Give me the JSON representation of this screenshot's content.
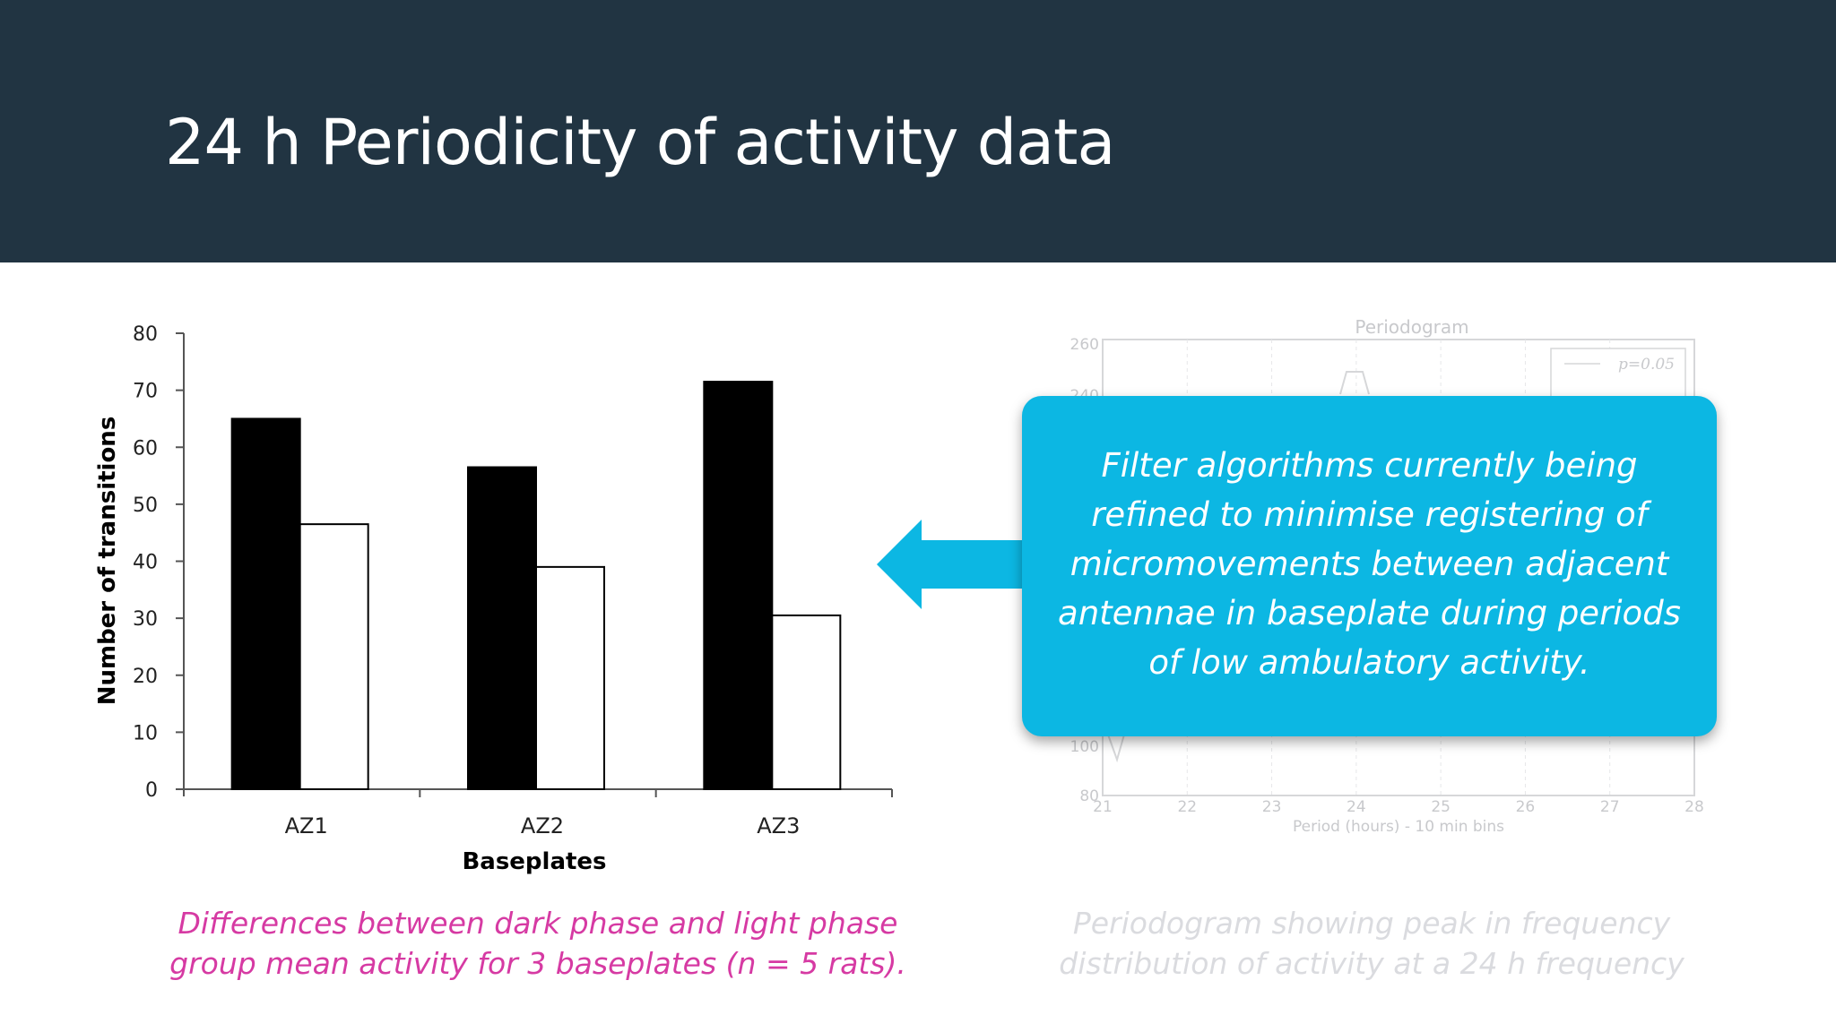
{
  "slide": {
    "title": "24 h Periodicity of activity data",
    "caption_left": "Differences between dark phase and light phase group mean activity for 3 baseplates (n = 5 rats).",
    "caption_right": "Periodogram showing peak in frequency distribution of activity at a 24 h frequency",
    "callout": "Filter algorithms currently being refined to minimise registering of micromovements between adjacent antennae in baseplate during periods of low ambulatory activity.",
    "colors": {
      "header": "#213442",
      "callout": "#0cb7e3",
      "caption_left": "#d63aa3",
      "caption_right_faded": "#dadbdf"
    }
  },
  "chart_data": [
    {
      "type": "bar",
      "categories": [
        "AZ1",
        "AZ2",
        "AZ3"
      ],
      "series": [
        {
          "values": [
            65,
            56.5,
            71.5
          ],
          "color": "#000000"
        },
        {
          "values": [
            46.5,
            39,
            30.5
          ],
          "color": "#ffffff"
        }
      ],
      "yticks": [
        "0",
        "10",
        "20",
        "30",
        "40",
        "50",
        "60",
        "70",
        "80"
      ],
      "xlabel": "Baseplates",
      "ylabel": "Number of transitions",
      "ylim": [
        0,
        80
      ],
      "grid": false
    },
    {
      "type": "line",
      "faded": true,
      "title": "Periodogram",
      "xlabel": "Period (hours) - 10 min bins",
      "xticks": [
        "21",
        "22",
        "23",
        "24",
        "25",
        "26",
        "27",
        "28"
      ],
      "yticks_visible": [
        "260",
        "240",
        "100",
        "80"
      ],
      "legend_visible": [
        "p=0.05"
      ],
      "legend_placement": "top-right",
      "grid": true
    }
  ]
}
